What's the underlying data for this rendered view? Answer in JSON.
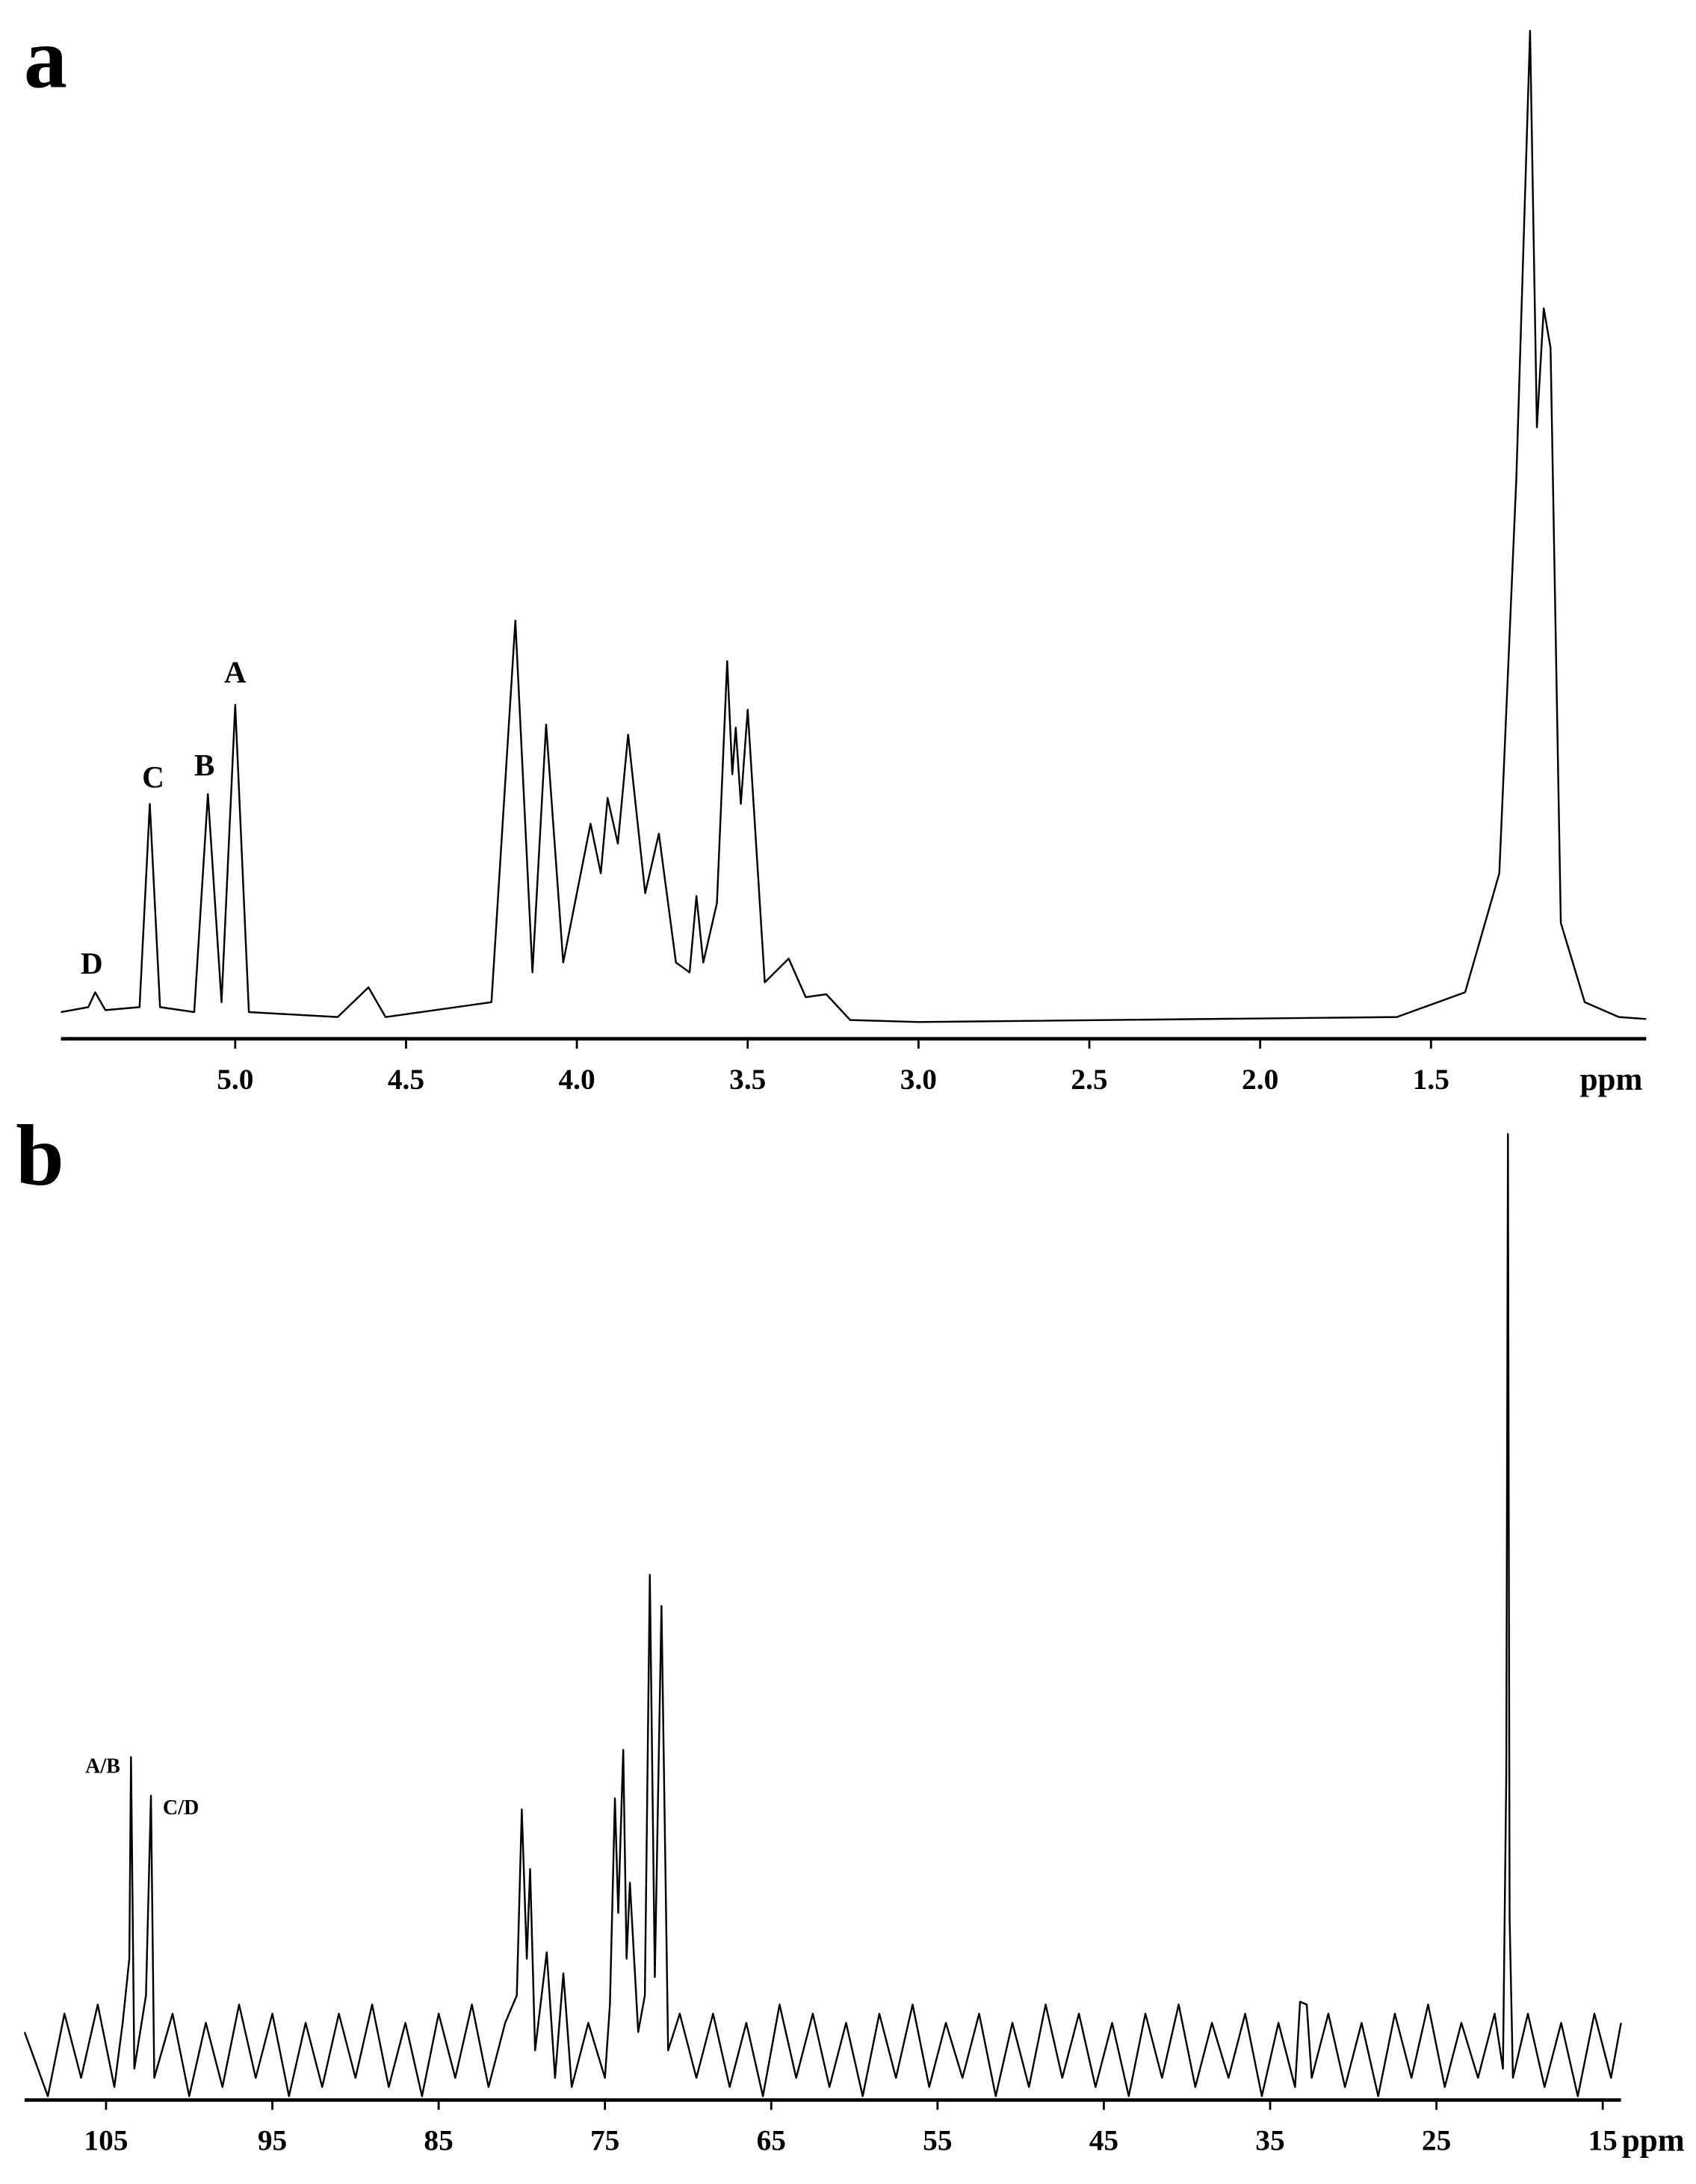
{
  "chart_data": [
    {
      "type": "line",
      "label": "a",
      "x_label": "ppm",
      "color": "#000000",
      "xlim": [
        5.51,
        0.87
      ],
      "ylim": [
        0,
        100
      ],
      "xticks": [
        {
          "value": 5,
          "label": "5.0"
        },
        4.5,
        {
          "value": 4,
          "label": "4.0"
        },
        3.5,
        {
          "value": 3,
          "label": "3.0"
        },
        2.5,
        {
          "value": 2,
          "label": "2.0"
        },
        1.5
      ],
      "x": [
        5.51,
        5.43,
        5.41,
        5.38,
        5.28,
        5.25,
        5.22,
        5.12,
        5.08,
        5.04,
        5.0,
        4.96,
        4.7,
        4.61,
        4.56,
        4.25,
        4.18,
        4.13,
        4.09,
        4.04,
        3.96,
        3.93,
        3.91,
        3.88,
        3.85,
        3.8,
        3.76,
        3.71,
        3.67,
        3.65,
        3.63,
        3.59,
        3.56,
        3.545,
        3.535,
        3.52,
        3.5,
        3.45,
        3.38,
        3.33,
        3.27,
        3.2,
        3.0,
        1.6,
        1.4,
        1.3,
        1.25,
        1.21,
        1.19,
        1.17,
        1.15,
        1.12,
        1.05,
        0.95,
        0.87
      ],
      "values": [
        1,
        1.5,
        3,
        1.2,
        1.5,
        22,
        1.5,
        1,
        23,
        2,
        32,
        1,
        0.5,
        3.5,
        0.5,
        2,
        40.5,
        5,
        30,
        6,
        20,
        15,
        22.6,
        18,
        29,
        13,
        19,
        6,
        5,
        12.7,
        6,
        12,
        36.4,
        25,
        29.7,
        22,
        31.5,
        4,
        6.4,
        2.5,
        2.8,
        0.2,
        0,
        0.5,
        3,
        15,
        55,
        100,
        60,
        72,
        68,
        10,
        2,
        0.5,
        0.3
      ],
      "annotations": [
        {
          "label": "D",
          "x": 5.42,
          "value": 5.6
        },
        {
          "label": "C",
          "x": 5.24,
          "value": 24.4
        },
        {
          "label": "B",
          "x": 5.09,
          "value": 25.6
        },
        {
          "label": "A",
          "x": 5.0,
          "value": 35
        }
      ]
    },
    {
      "type": "line",
      "label": "b",
      "x_label": "ppm",
      "color": "#000000",
      "xlim": [
        109.9,
        13.9
      ],
      "ylim": [
        -10,
        100
      ],
      "xticks": [
        105,
        95,
        85,
        75,
        65,
        55,
        45,
        35,
        25,
        15
      ],
      "x": [
        109.9,
        108.5,
        107.5,
        106.5,
        105.5,
        104.5,
        104.0,
        103.6,
        103.5,
        103.3,
        102.6,
        102.3,
        102.1,
        101,
        100,
        99,
        98,
        97,
        96,
        95,
        94,
        93,
        92,
        91,
        90,
        89,
        88,
        87,
        86,
        85,
        84,
        83,
        82,
        81,
        80.3,
        80.0,
        79.7,
        79.5,
        79.2,
        78.5,
        78.0,
        77.5,
        77,
        76,
        75,
        74.7,
        74.4,
        74.2,
        73.9,
        73.7,
        73.5,
        73.0,
        72.6,
        72.3,
        72.0,
        71.6,
        71.2,
        70.5,
        69.5,
        68.5,
        67.5,
        66.5,
        65.5,
        64.5,
        63.5,
        62.5,
        61.5,
        60.5,
        59.5,
        58.5,
        57.5,
        56.5,
        55.5,
        54.5,
        53.5,
        52.5,
        51.5,
        50.5,
        49.5,
        48.5,
        47.5,
        46.5,
        45.5,
        44.5,
        43.5,
        42.5,
        41.5,
        40.5,
        39.5,
        38.5,
        37.5,
        36.5,
        35.5,
        34.5,
        33.5,
        33.2,
        32.8,
        32.5,
        31.5,
        30.5,
        29.5,
        28.5,
        27.5,
        26.5,
        25.5,
        24.5,
        23.5,
        22.5,
        21.5,
        21.0,
        20.8,
        20.7,
        20.6,
        20.4,
        19.5,
        18.5,
        17.5,
        16.5,
        15.5,
        14.5,
        13.9
      ],
      "values": [
        2,
        -5,
        4,
        -3,
        5,
        -4,
        3,
        10,
        32,
        -2,
        6,
        27.8,
        -3,
        4,
        -5,
        3,
        -4,
        5,
        -3,
        4,
        -5,
        3,
        -4,
        4,
        -3,
        5,
        -4,
        3,
        -5,
        4,
        -3,
        5,
        -4,
        3,
        6,
        26.3,
        10,
        19.8,
        0,
        10.7,
        -3,
        8.4,
        -4,
        3,
        -3,
        5,
        27.5,
        15,
        32.8,
        10,
        18.3,
        2,
        6,
        51.9,
        8,
        48.5,
        0,
        4,
        -3,
        4,
        -4,
        3,
        -5,
        5,
        -3,
        4,
        -4,
        3,
        -5,
        4,
        -3,
        5,
        -4,
        3,
        -3,
        4,
        -5,
        3,
        -4,
        5,
        -3,
        4,
        -4,
        3,
        -5,
        4,
        -3,
        5,
        -4,
        3,
        -3,
        4,
        -5,
        3,
        -4,
        5.3,
        5,
        -3,
        4,
        -4,
        3,
        -5,
        4,
        -3,
        5,
        -4,
        3,
        -3,
        4,
        -2,
        30,
        100,
        14.5,
        -3,
        4,
        -4,
        3,
        -5,
        4,
        -3,
        3
      ],
      "annotations": [
        {
          "label": "A/B",
          "x": 105.2,
          "value": 30.8
        },
        {
          "label": "C/D",
          "x": 100.5,
          "value": 26.3
        }
      ]
    }
  ]
}
